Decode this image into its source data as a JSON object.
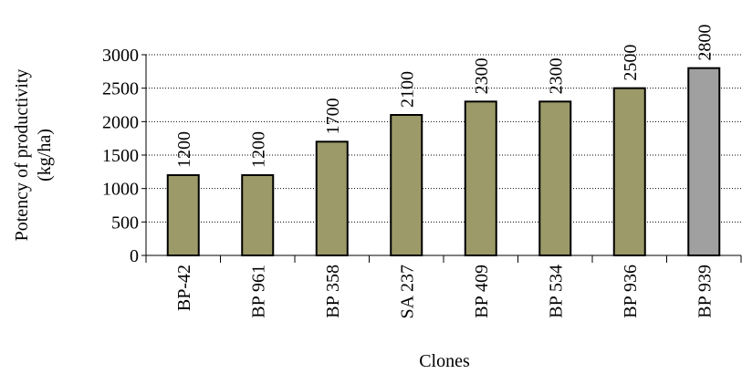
{
  "chart_data": {
    "type": "bar",
    "categories": [
      "BP-42",
      "BP 961",
      "BP 358",
      "SA 237",
      "BP 409",
      "BP 534",
      "BP 936",
      "BP 939"
    ],
    "values": [
      1200,
      1200,
      1700,
      2100,
      2300,
      2300,
      2500,
      2800
    ],
    "colors": [
      "#9c9a68",
      "#9c9a68",
      "#9c9a68",
      "#9c9a68",
      "#9c9a68",
      "#9c9a68",
      "#9c9a68",
      "#a0a0a0"
    ],
    "x_label": "Clones",
    "y_label": [
      "Potency of productivity",
      "(kg/ha)"
    ],
    "ylim": [
      0,
      3000
    ],
    "yticks": [
      0,
      500,
      1000,
      1500,
      2000,
      2500,
      3000
    ],
    "grid": true
  }
}
